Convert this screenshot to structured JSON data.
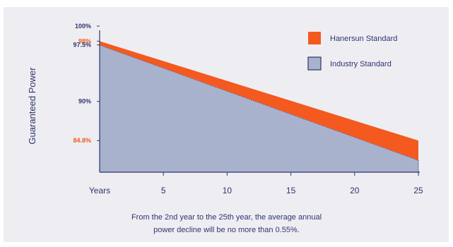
{
  "chart_data": {
    "type": "area",
    "ylabel": "Guaranteed Power",
    "xlabel": "Years",
    "x_ticks": [
      "5",
      "10",
      "15",
      "20",
      "25"
    ],
    "xlim": [
      0,
      25
    ],
    "ylim": [
      80.6,
      100
    ],
    "y_ticks": [
      {
        "value": 100,
        "label": "100%",
        "highlight": false
      },
      {
        "value": 98,
        "label": "98%",
        "highlight": true
      },
      {
        "value": 97.5,
        "label": "97.5%",
        "highlight": false
      },
      {
        "value": 90,
        "label": "90%",
        "highlight": false
      },
      {
        "value": 84.8,
        "label": "84.8%",
        "highlight": true
      }
    ],
    "series": [
      {
        "name": "Hanersun Standard",
        "color": "#f4591f",
        "x": [
          0,
          25
        ],
        "values": [
          98,
          84.8
        ]
      },
      {
        "name": "Industry Standard",
        "color": "#a9b2cc",
        "x": [
          0,
          25
        ],
        "values": [
          97.5,
          82.2
        ]
      }
    ],
    "legend_position": "top-right",
    "annotation_lines": [
      "From the 2nd year to the 25th year, the average annual",
      "power decline will be no more than 0.55%."
    ],
    "colors": {
      "axis_text": "#2f3470",
      "highlight_text": "#f4591f",
      "background": "#eeeef2"
    }
  }
}
